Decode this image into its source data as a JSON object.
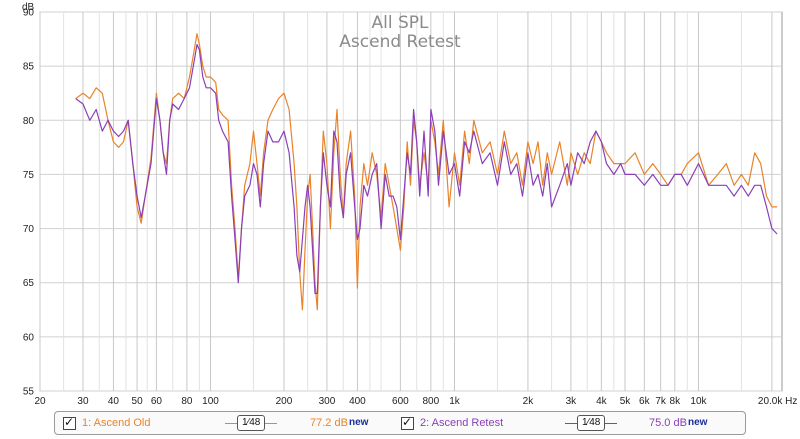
{
  "chart_data": {
    "type": "line",
    "title": "All SPL",
    "subtitle": "Ascend Retest",
    "ylabel": "dB",
    "x_scale": "log",
    "xlim": [
      20,
      22000
    ],
    "ylim": [
      55,
      90
    ],
    "y_ticks": [
      55,
      60,
      65,
      70,
      75,
      80,
      85,
      90
    ],
    "x_ticks_major": [
      {
        "v": 20,
        "label": "20"
      },
      {
        "v": 30,
        "label": "30"
      },
      {
        "v": 40,
        "label": "40"
      },
      {
        "v": 50,
        "label": "50"
      },
      {
        "v": 60,
        "label": "60"
      },
      {
        "v": 80,
        "label": "80"
      },
      {
        "v": 100,
        "label": "100"
      },
      {
        "v": 200,
        "label": "200"
      },
      {
        "v": 300,
        "label": "300"
      },
      {
        "v": 400,
        "label": "400"
      },
      {
        "v": 600,
        "label": "600"
      },
      {
        "v": 800,
        "label": "800"
      },
      {
        "v": 1000,
        "label": "1k"
      },
      {
        "v": 2000,
        "label": "2k"
      },
      {
        "v": 3000,
        "label": "3k"
      },
      {
        "v": 4000,
        "label": "4k"
      },
      {
        "v": 5000,
        "label": "5k"
      },
      {
        "v": 6000,
        "label": "6k"
      },
      {
        "v": 7000,
        "label": "7k"
      },
      {
        "v": 8000,
        "label": "8k"
      },
      {
        "v": 10000,
        "label": "10k"
      },
      {
        "v": 20000,
        "label": "20.0k Hz"
      }
    ],
    "x_grid_minor": [
      25,
      35,
      45,
      55,
      70,
      90,
      150,
      250,
      350,
      450,
      500,
      700,
      900,
      1500,
      2500,
      3500,
      4500,
      9000,
      15000
    ],
    "grid": true,
    "series": [
      {
        "name": "1: Ascend Old",
        "color": "#e8832a",
        "points": [
          [
            28,
            82
          ],
          [
            30,
            82.5
          ],
          [
            32,
            82
          ],
          [
            34,
            83
          ],
          [
            36,
            82.5
          ],
          [
            38,
            80
          ],
          [
            40,
            78
          ],
          [
            42,
            77.5
          ],
          [
            44,
            78
          ],
          [
            46,
            80
          ],
          [
            48,
            76
          ],
          [
            50,
            72
          ],
          [
            52,
            70.5
          ],
          [
            54,
            73
          ],
          [
            57,
            76.5
          ],
          [
            60,
            82.5
          ],
          [
            62,
            80
          ],
          [
            64,
            77
          ],
          [
            66,
            76
          ],
          [
            68,
            80
          ],
          [
            70,
            82
          ],
          [
            74,
            82.5
          ],
          [
            78,
            82
          ],
          [
            82,
            84
          ],
          [
            85,
            86
          ],
          [
            88,
            88
          ],
          [
            90,
            87
          ],
          [
            93,
            85
          ],
          [
            96,
            84
          ],
          [
            100,
            84
          ],
          [
            105,
            83.5
          ],
          [
            108,
            81
          ],
          [
            112,
            80.5
          ],
          [
            118,
            80
          ],
          [
            122,
            74
          ],
          [
            126,
            70
          ],
          [
            130,
            65.5
          ],
          [
            134,
            70
          ],
          [
            138,
            74
          ],
          [
            145,
            76
          ],
          [
            150,
            79
          ],
          [
            155,
            76
          ],
          [
            160,
            73
          ],
          [
            165,
            77
          ],
          [
            172,
            80
          ],
          [
            180,
            81
          ],
          [
            190,
            82
          ],
          [
            200,
            82.5
          ],
          [
            210,
            81
          ],
          [
            220,
            76
          ],
          [
            226,
            72
          ],
          [
            232,
            66
          ],
          [
            238,
            62.5
          ],
          [
            244,
            68
          ],
          [
            250,
            73
          ],
          [
            256,
            75
          ],
          [
            262,
            70
          ],
          [
            268,
            65
          ],
          [
            274,
            62.5
          ],
          [
            282,
            72
          ],
          [
            290,
            79
          ],
          [
            300,
            76
          ],
          [
            310,
            70
          ],
          [
            320,
            77
          ],
          [
            330,
            81
          ],
          [
            340,
            75
          ],
          [
            350,
            71
          ],
          [
            360,
            76
          ],
          [
            375,
            79
          ],
          [
            390,
            73
          ],
          [
            400,
            64.5
          ],
          [
            410,
            72
          ],
          [
            425,
            76
          ],
          [
            440,
            74
          ],
          [
            460,
            77
          ],
          [
            480,
            75
          ],
          [
            500,
            71
          ],
          [
            520,
            76
          ],
          [
            540,
            74
          ],
          [
            560,
            72
          ],
          [
            580,
            70
          ],
          [
            600,
            68
          ],
          [
            620,
            72
          ],
          [
            640,
            78
          ],
          [
            660,
            74
          ],
          [
            680,
            80
          ],
          [
            700,
            78
          ],
          [
            720,
            74
          ],
          [
            750,
            77
          ],
          [
            780,
            74
          ],
          [
            800,
            80
          ],
          [
            830,
            78
          ],
          [
            860,
            75
          ],
          [
            900,
            80
          ],
          [
            950,
            72
          ],
          [
            1000,
            77
          ],
          [
            1050,
            74
          ],
          [
            1100,
            79
          ],
          [
            1150,
            76
          ],
          [
            1200,
            80
          ],
          [
            1300,
            77
          ],
          [
            1400,
            78
          ],
          [
            1500,
            75
          ],
          [
            1600,
            79
          ],
          [
            1700,
            76
          ],
          [
            1800,
            77
          ],
          [
            1900,
            74
          ],
          [
            2000,
            78
          ],
          [
            2100,
            76
          ],
          [
            2200,
            78
          ],
          [
            2300,
            74
          ],
          [
            2400,
            77
          ],
          [
            2500,
            75
          ],
          [
            2700,
            78
          ],
          [
            2900,
            74
          ],
          [
            3000,
            77
          ],
          [
            3200,
            75
          ],
          [
            3400,
            77
          ],
          [
            3600,
            76
          ],
          [
            3800,
            79
          ],
          [
            4000,
            78
          ],
          [
            4200,
            77
          ],
          [
            4500,
            76
          ],
          [
            4800,
            76
          ],
          [
            5000,
            76
          ],
          [
            5500,
            77
          ],
          [
            6000,
            75
          ],
          [
            6500,
            76
          ],
          [
            7000,
            75
          ],
          [
            7500,
            74
          ],
          [
            8000,
            75
          ],
          [
            8500,
            75
          ],
          [
            9000,
            76
          ],
          [
            10000,
            77
          ],
          [
            11000,
            74
          ],
          [
            12000,
            75
          ],
          [
            13000,
            76
          ],
          [
            14000,
            74
          ],
          [
            15000,
            75
          ],
          [
            16000,
            74
          ],
          [
            17000,
            77
          ],
          [
            18000,
            76
          ],
          [
            19000,
            73
          ],
          [
            20000,
            72
          ],
          [
            21000,
            72
          ]
        ]
      },
      {
        "name": "2: Ascend Retest",
        "color": "#8a3fb8",
        "points": [
          [
            28,
            82
          ],
          [
            30,
            81.5
          ],
          [
            32,
            80
          ],
          [
            34,
            81
          ],
          [
            36,
            79
          ],
          [
            38,
            80
          ],
          [
            40,
            79
          ],
          [
            42,
            78.5
          ],
          [
            44,
            79
          ],
          [
            46,
            80
          ],
          [
            48,
            76
          ],
          [
            50,
            73
          ],
          [
            52,
            71
          ],
          [
            54,
            73
          ],
          [
            57,
            76
          ],
          [
            60,
            82
          ],
          [
            62,
            80
          ],
          [
            64,
            77
          ],
          [
            66,
            75
          ],
          [
            68,
            80
          ],
          [
            70,
            81.5
          ],
          [
            74,
            81
          ],
          [
            78,
            82
          ],
          [
            82,
            83
          ],
          [
            85,
            85
          ],
          [
            88,
            87
          ],
          [
            90,
            86.5
          ],
          [
            93,
            84
          ],
          [
            96,
            83
          ],
          [
            100,
            83
          ],
          [
            105,
            82.5
          ],
          [
            108,
            80
          ],
          [
            112,
            79
          ],
          [
            118,
            78
          ],
          [
            122,
            73
          ],
          [
            126,
            69
          ],
          [
            130,
            65
          ],
          [
            134,
            70
          ],
          [
            138,
            73
          ],
          [
            145,
            74
          ],
          [
            150,
            76
          ],
          [
            155,
            75
          ],
          [
            160,
            72
          ],
          [
            165,
            76
          ],
          [
            172,
            79
          ],
          [
            180,
            78
          ],
          [
            190,
            78
          ],
          [
            200,
            79
          ],
          [
            210,
            77
          ],
          [
            220,
            72
          ],
          [
            226,
            67.5
          ],
          [
            232,
            66
          ],
          [
            238,
            69
          ],
          [
            244,
            72
          ],
          [
            250,
            74
          ],
          [
            256,
            72
          ],
          [
            262,
            68
          ],
          [
            268,
            64
          ],
          [
            274,
            64
          ],
          [
            282,
            72
          ],
          [
            290,
            77
          ],
          [
            300,
            74
          ],
          [
            310,
            72
          ],
          [
            320,
            79
          ],
          [
            330,
            78
          ],
          [
            340,
            73
          ],
          [
            350,
            71
          ],
          [
            360,
            75
          ],
          [
            375,
            77
          ],
          [
            390,
            72
          ],
          [
            400,
            69
          ],
          [
            410,
            70
          ],
          [
            425,
            74
          ],
          [
            440,
            73
          ],
          [
            460,
            75
          ],
          [
            480,
            76
          ],
          [
            500,
            70
          ],
          [
            520,
            75
          ],
          [
            540,
            73
          ],
          [
            560,
            73
          ],
          [
            580,
            72
          ],
          [
            600,
            69
          ],
          [
            620,
            73
          ],
          [
            640,
            77
          ],
          [
            660,
            75
          ],
          [
            680,
            81
          ],
          [
            700,
            78
          ],
          [
            720,
            73
          ],
          [
            750,
            79
          ],
          [
            780,
            73
          ],
          [
            800,
            81
          ],
          [
            830,
            79
          ],
          [
            860,
            74
          ],
          [
            900,
            79
          ],
          [
            950,
            75
          ],
          [
            1000,
            76
          ],
          [
            1050,
            73
          ],
          [
            1100,
            78
          ],
          [
            1150,
            77
          ],
          [
            1200,
            79
          ],
          [
            1300,
            76
          ],
          [
            1400,
            77
          ],
          [
            1500,
            74
          ],
          [
            1600,
            78
          ],
          [
            1700,
            75
          ],
          [
            1800,
            76
          ],
          [
            1900,
            73
          ],
          [
            2000,
            77
          ],
          [
            2100,
            74
          ],
          [
            2200,
            75
          ],
          [
            2300,
            73
          ],
          [
            2400,
            76
          ],
          [
            2500,
            72
          ],
          [
            2700,
            74
          ],
          [
            2900,
            76
          ],
          [
            3000,
            74
          ],
          [
            3200,
            77
          ],
          [
            3400,
            76
          ],
          [
            3600,
            78
          ],
          [
            3800,
            79
          ],
          [
            4000,
            78
          ],
          [
            4200,
            76
          ],
          [
            4500,
            75
          ],
          [
            4800,
            76
          ],
          [
            5000,
            75
          ],
          [
            5500,
            75
          ],
          [
            6000,
            74
          ],
          [
            6500,
            75
          ],
          [
            7000,
            74
          ],
          [
            7500,
            74
          ],
          [
            8000,
            75
          ],
          [
            8500,
            75
          ],
          [
            9000,
            74
          ],
          [
            10000,
            76
          ],
          [
            11000,
            74
          ],
          [
            12000,
            74
          ],
          [
            13000,
            74
          ],
          [
            14000,
            73
          ],
          [
            15000,
            74
          ],
          [
            16000,
            73
          ],
          [
            17000,
            74
          ],
          [
            18000,
            74
          ],
          [
            19000,
            72
          ],
          [
            20000,
            70
          ],
          [
            21000,
            69.5
          ]
        ]
      }
    ]
  },
  "legend": {
    "items": [
      {
        "label": "1: Ascend Old",
        "color": "#e8832a",
        "smoothing": "1⁄48",
        "level": "77.2 dB",
        "tag": "new"
      },
      {
        "label": "2: Ascend Retest",
        "color": "#8a3fb8",
        "smoothing": "1⁄48",
        "level": "75.0 dB",
        "tag": "new"
      }
    ]
  }
}
